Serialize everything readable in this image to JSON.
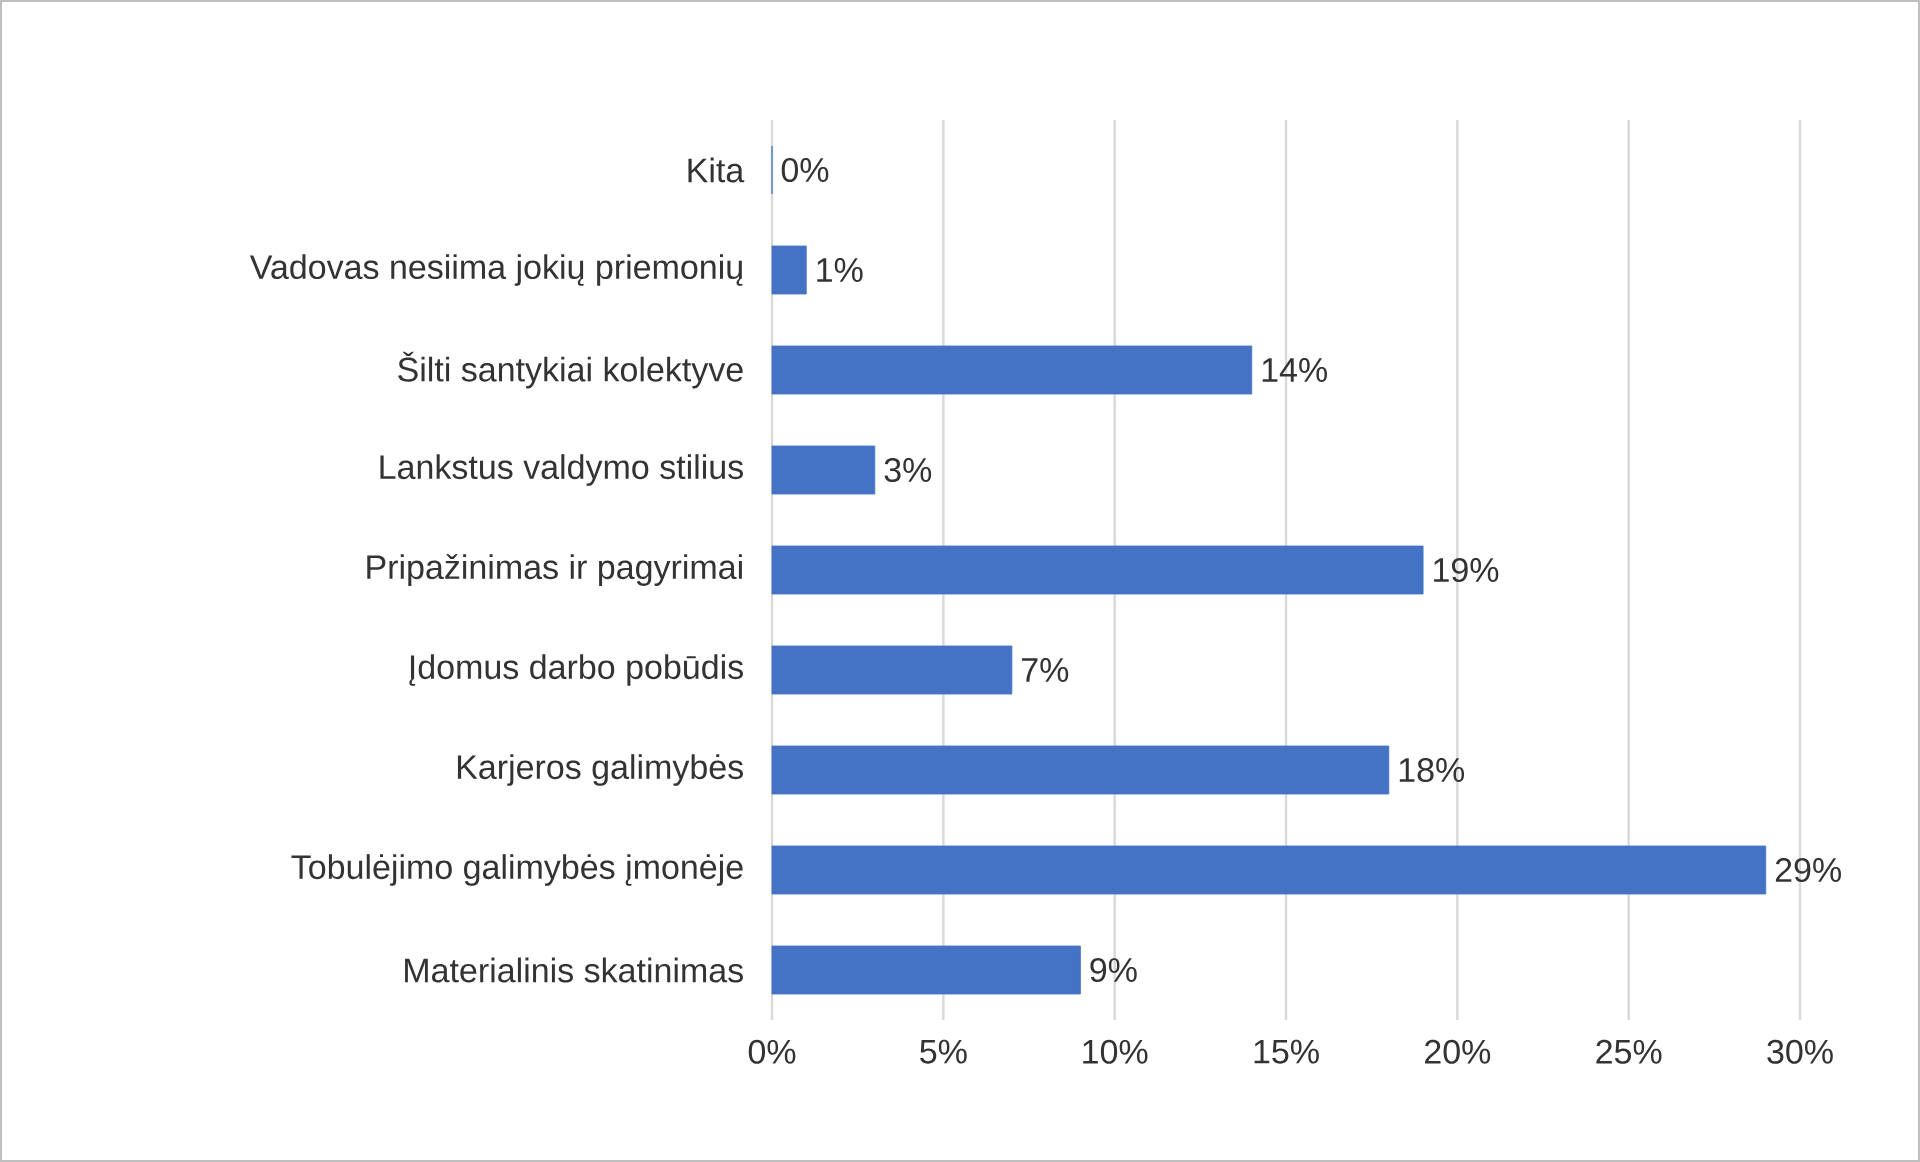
{
  "chart_data": {
    "type": "bar",
    "orientation": "horizontal",
    "categories": [
      "Kita",
      "Vadovas nesiima jokių priemonių",
      "Šilti santykiai kolektyve",
      "Lankstus valdymo stilius",
      "Pripažinimas ir pagyrimai",
      "Įdomus darbo pobūdis",
      "Karjeros galimybės",
      "Tobulėjimo galimybės įmonėje",
      "Materialinis skatinimas"
    ],
    "values": [
      0,
      1,
      14,
      3,
      19,
      7,
      18,
      29,
      9
    ],
    "value_labels": [
      "0%",
      "1%",
      "14%",
      "3%",
      "19%",
      "7%",
      "18%",
      "29%",
      "9%"
    ],
    "color": "#4472c4",
    "xlim": [
      0,
      30
    ],
    "xticks": [
      {
        "value": 0,
        "label": "0%"
      },
      {
        "value": 5,
        "label": "5%"
      },
      {
        "value": 10,
        "label": "10%"
      },
      {
        "value": 15,
        "label": "15%"
      },
      {
        "value": 20,
        "label": "20%"
      },
      {
        "value": 25,
        "label": "25%"
      },
      {
        "value": 30,
        "label": "30%"
      }
    ],
    "grid": "x"
  }
}
